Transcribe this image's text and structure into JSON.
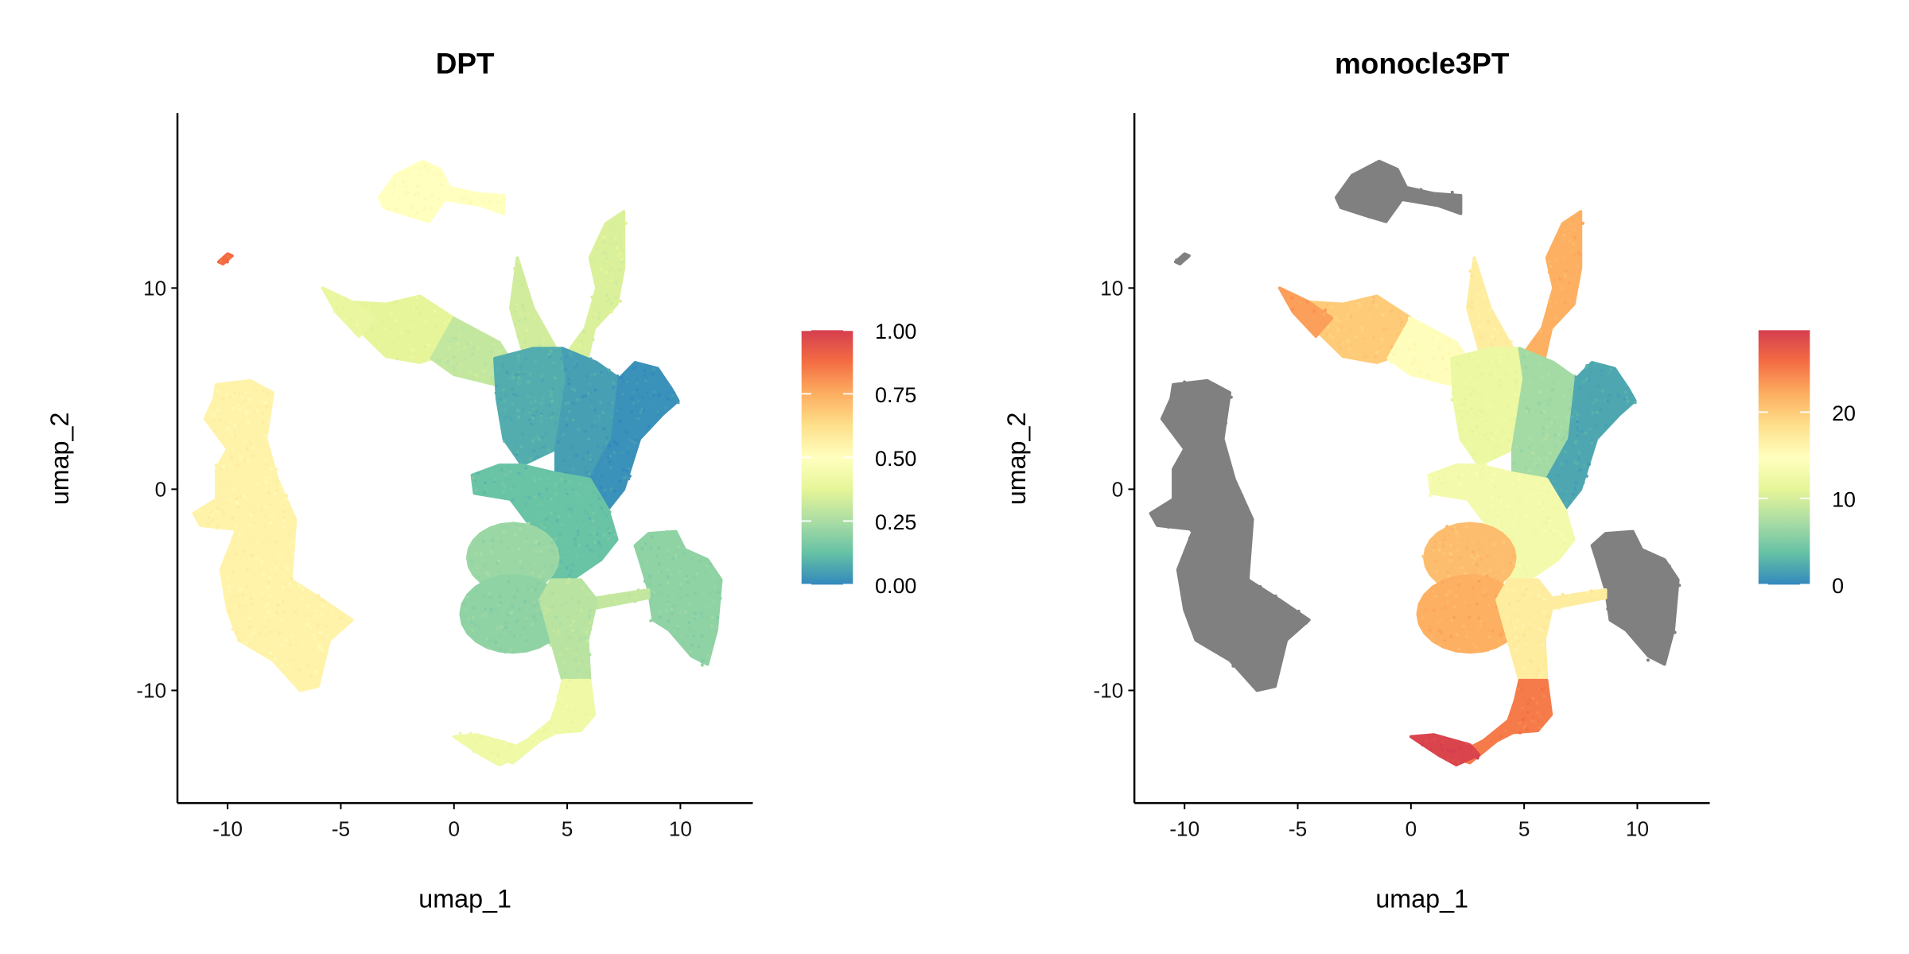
{
  "colors": {
    "palette": [
      "#3288BD",
      "#66C2A5",
      "#ABDDA4",
      "#E6F598",
      "#FFFFBF",
      "#FEE08B",
      "#FDAE61",
      "#F46D43",
      "#D53E4F"
    ],
    "na_color": "#808080",
    "axis": "#000000"
  },
  "umap_clusters": [
    {
      "id": "top_island",
      "polygon": [
        [
          -3.3,
          14.5
        ],
        [
          -2.6,
          15.6
        ],
        [
          -1.4,
          16.3
        ],
        [
          -0.6,
          15.9
        ],
        [
          -0.2,
          15.0
        ],
        [
          1.0,
          14.7
        ],
        [
          2.2,
          14.6
        ],
        [
          2.2,
          13.7
        ],
        [
          1.2,
          14.1
        ],
        [
          -0.4,
          14.4
        ],
        [
          -1.1,
          13.3
        ],
        [
          -2.0,
          13.6
        ],
        [
          -3.1,
          14.0
        ]
      ]
    },
    {
      "id": "small_island",
      "polygon": [
        [
          -10.4,
          11.3
        ],
        [
          -10.0,
          11.7
        ],
        [
          -9.8,
          11.6
        ],
        [
          -10.2,
          11.2
        ]
      ]
    },
    {
      "id": "left_island",
      "polygon": [
        [
          -10.5,
          5.2
        ],
        [
          -9,
          5.4
        ],
        [
          -8,
          4.8
        ],
        [
          -8.3,
          2.5
        ],
        [
          -7.8,
          0.5
        ],
        [
          -7.0,
          -1.5
        ],
        [
          -7.2,
          -4.5
        ],
        [
          -5.8,
          -5.5
        ],
        [
          -4.5,
          -6.5
        ],
        [
          -5.5,
          -7.5
        ],
        [
          -6,
          -9.8
        ],
        [
          -6.8,
          -10
        ],
        [
          -8,
          -8.5
        ],
        [
          -9.5,
          -7.5
        ],
        [
          -10,
          -6
        ],
        [
          -10.3,
          -4
        ],
        [
          -9.6,
          -2
        ],
        [
          -11.2,
          -1.8
        ],
        [
          -11.5,
          -1.2
        ],
        [
          -10.5,
          -0.5
        ],
        [
          -10.5,
          1
        ],
        [
          -10,
          2
        ],
        [
          -11,
          3.5
        ],
        [
          -10.6,
          4.5
        ]
      ]
    },
    {
      "id": "right_island",
      "polygon": [
        [
          8.6,
          -2.2
        ],
        [
          9.8,
          -2.1
        ],
        [
          10.2,
          -3.0
        ],
        [
          11.2,
          -3.5
        ],
        [
          11.8,
          -4.5
        ],
        [
          11.6,
          -7
        ],
        [
          11.2,
          -8.7
        ],
        [
          10.5,
          -8.3
        ],
        [
          9.5,
          -7
        ],
        [
          8.8,
          -6.5
        ],
        [
          8.6,
          -5
        ],
        [
          8.2,
          -3.5
        ],
        [
          8.0,
          -2.8
        ]
      ]
    },
    {
      "id": "bridge",
      "polygon": [
        [
          6.3,
          -5.4
        ],
        [
          8.6,
          -5.0
        ],
        [
          8.6,
          -5.4
        ],
        [
          6.3,
          -5.9
        ]
      ]
    },
    {
      "id": "left_arm",
      "polygon": [
        [
          -5.8,
          10.0
        ],
        [
          -4.5,
          9.3
        ],
        [
          -3,
          9.2
        ],
        [
          -1.5,
          9.6
        ],
        [
          0,
          8.5
        ],
        [
          -1,
          6.5
        ],
        [
          -1.5,
          6.3
        ],
        [
          -3,
          6.6
        ],
        [
          -4,
          7.7
        ],
        [
          -5,
          9
        ]
      ]
    },
    {
      "id": "left_arm_tip",
      "polygon": [
        [
          -5.8,
          10
        ],
        [
          -4.5,
          9.3
        ],
        [
          -3.5,
          8.5
        ],
        [
          -4.2,
          7.6
        ],
        [
          -5.2,
          8.8
        ]
      ]
    },
    {
      "id": "left_arm_base",
      "polygon": [
        [
          0,
          8.5
        ],
        [
          2,
          7.3
        ],
        [
          3,
          5.5
        ],
        [
          1.8,
          5.2
        ],
        [
          0,
          5.7
        ],
        [
          -1,
          6.5
        ]
      ]
    },
    {
      "id": "upper_arm",
      "polygon": [
        [
          4.5,
          6
        ],
        [
          5.8,
          8
        ],
        [
          6.3,
          10
        ],
        [
          6,
          11.5
        ],
        [
          6.7,
          13.2
        ],
        [
          7.5,
          13.8
        ],
        [
          7.5,
          11
        ],
        [
          7.2,
          9.2
        ],
        [
          6.2,
          8
        ],
        [
          5.8,
          6
        ],
        [
          5,
          5
        ]
      ]
    },
    {
      "id": "spike",
      "polygon": [
        [
          2.8,
          11.5
        ],
        [
          3.5,
          9
        ],
        [
          4.5,
          7
        ],
        [
          3,
          7
        ],
        [
          2.5,
          9
        ]
      ]
    },
    {
      "id": "core_left",
      "polygon": [
        [
          1.8,
          6.5
        ],
        [
          3.5,
          7.0
        ],
        [
          4.8,
          7.0
        ],
        [
          5.0,
          5.5
        ],
        [
          4.5,
          2.0
        ],
        [
          3,
          1.2
        ],
        [
          2.2,
          2.5
        ],
        [
          1.9,
          4.5
        ]
      ]
    },
    {
      "id": "core_mid",
      "polygon": [
        [
          4.8,
          7.0
        ],
        [
          6.3,
          6.3
        ],
        [
          7.3,
          5.5
        ],
        [
          7.0,
          2.5
        ],
        [
          6,
          0.5
        ],
        [
          4.5,
          0.8
        ],
        [
          4.5,
          2.0
        ],
        [
          5.0,
          5.5
        ]
      ]
    },
    {
      "id": "core_right",
      "polygon": [
        [
          7.3,
          5.5
        ],
        [
          8.0,
          6.3
        ],
        [
          9.0,
          6.0
        ],
        [
          9.6,
          5.0
        ],
        [
          9.9,
          4.4
        ],
        [
          9.2,
          3.7
        ],
        [
          8.2,
          2.5
        ],
        [
          7.5,
          0
        ],
        [
          6.8,
          -1
        ],
        [
          6,
          0.5
        ],
        [
          7.0,
          2.5
        ]
      ]
    },
    {
      "id": "trunk",
      "polygon": [
        [
          3,
          1.2
        ],
        [
          4.5,
          0.8
        ],
        [
          6,
          0.5
        ],
        [
          6.8,
          -1
        ],
        [
          7.2,
          -2.5
        ],
        [
          6.5,
          -3.5
        ],
        [
          5.2,
          -4.5
        ],
        [
          4.3,
          -4.5
        ],
        [
          3.5,
          -2
        ],
        [
          2.5,
          -0.5
        ],
        [
          0.9,
          -0.2
        ],
        [
          0.8,
          0.7
        ],
        [
          2,
          1.2
        ]
      ]
    },
    {
      "id": "lobe_upper",
      "ellipse": {
        "center": [
          2.6,
          -3.4
        ],
        "radius": [
          2.0,
          1.7
        ]
      }
    },
    {
      "id": "lobe_lower",
      "ellipse": {
        "center": [
          2.6,
          -6.2
        ],
        "radius": [
          2.3,
          1.9
        ]
      }
    },
    {
      "id": "lower_trunk",
      "polygon": [
        [
          4.3,
          -4.5
        ],
        [
          5.6,
          -4.5
        ],
        [
          6.3,
          -5.5
        ],
        [
          5.9,
          -7.5
        ],
        [
          6.0,
          -9.5
        ],
        [
          4.8,
          -9.5
        ],
        [
          4.3,
          -7.5
        ],
        [
          3.8,
          -5.5
        ]
      ]
    },
    {
      "id": "bottom_arm",
      "polygon": [
        [
          4.8,
          -9.5
        ],
        [
          6.0,
          -9.5
        ],
        [
          6.2,
          -11.2
        ],
        [
          5.6,
          -12.0
        ],
        [
          4.5,
          -12.1
        ],
        [
          3.8,
          -12.5
        ],
        [
          2.6,
          -13.6
        ],
        [
          1.8,
          -13.3
        ],
        [
          3.2,
          -12.5
        ],
        [
          4.3,
          -11.5
        ],
        [
          4.6,
          -10.5
        ]
      ]
    },
    {
      "id": "bottom_tip",
      "polygon": [
        [
          0.0,
          -12.3
        ],
        [
          1.0,
          -12.2
        ],
        [
          2.6,
          -12.7
        ],
        [
          3.0,
          -13.2
        ],
        [
          2.0,
          -13.7
        ],
        [
          1.2,
          -13.2
        ]
      ]
    }
  ],
  "chart_data": [
    {
      "type": "scatter",
      "title": "DPT",
      "xlabel": "umap_1",
      "ylabel": "umap_2",
      "xlim": [
        -12.2,
        13.2
      ],
      "ylim": [
        -15.6,
        18.7
      ],
      "xticks": [
        -10,
        -5,
        0,
        5,
        10
      ],
      "xtick_labels": [
        "-10",
        "-5",
        "0",
        "5",
        "10"
      ],
      "yticks": [
        -10,
        0,
        10
      ],
      "ytick_labels": [
        "-10",
        "0",
        "10"
      ],
      "grid": false,
      "legend": {
        "position": "right",
        "type": "colorbar",
        "range": [
          0,
          1
        ],
        "ticks": [
          0,
          0.25,
          0.5,
          0.75,
          1
        ],
        "tick_labels": [
          "0.00",
          "0.25",
          "0.50",
          "0.75",
          "1.00"
        ]
      },
      "cluster_values": {
        "top_island": 0.5,
        "small_island": 0.88,
        "left_island": 0.55,
        "right_island": 0.2,
        "bridge": 0.3,
        "left_arm": 0.38,
        "left_arm_tip": 0.4,
        "left_arm_base": 0.3,
        "upper_arm": 0.35,
        "spike": 0.33,
        "core_left": 0.08,
        "core_mid": 0.05,
        "core_right": 0.02,
        "trunk": 0.13,
        "lobe_upper": 0.22,
        "lobe_lower": 0.2,
        "lower_trunk": 0.28,
        "bottom_arm": 0.42,
        "bottom_tip": 0.42
      }
    },
    {
      "type": "scatter",
      "title": "monocle3PT",
      "xlabel": "umap_1",
      "ylabel": "umap_2",
      "xlim": [
        -12.2,
        13.2
      ],
      "ylim": [
        -15.6,
        18.7
      ],
      "xticks": [
        -10,
        -5,
        0,
        5,
        10
      ],
      "xtick_labels": [
        "-10",
        "-5",
        "0",
        "5",
        "10"
      ],
      "yticks": [
        -10,
        0,
        10
      ],
      "ytick_labels": [
        "-10",
        "0",
        "10"
      ],
      "grid": false,
      "legend": {
        "position": "right",
        "type": "colorbar",
        "range": [
          0,
          29.5
        ],
        "ticks": [
          0,
          10,
          20
        ],
        "tick_labels": [
          "0",
          "10",
          "20"
        ]
      },
      "cluster_values": {
        "top_island": null,
        "small_island": null,
        "left_island": null,
        "right_island": null,
        "bridge": 17,
        "left_arm": 20,
        "left_arm_tip": 23,
        "left_arm_base": 15,
        "upper_arm": 22,
        "spike": 17,
        "core_left": 12,
        "core_mid": 7,
        "core_right": 2,
        "trunk": 13,
        "lobe_upper": 21,
        "lobe_lower": 22,
        "lower_trunk": 17,
        "bottom_arm": 25,
        "bottom_tip": 29
      }
    }
  ]
}
